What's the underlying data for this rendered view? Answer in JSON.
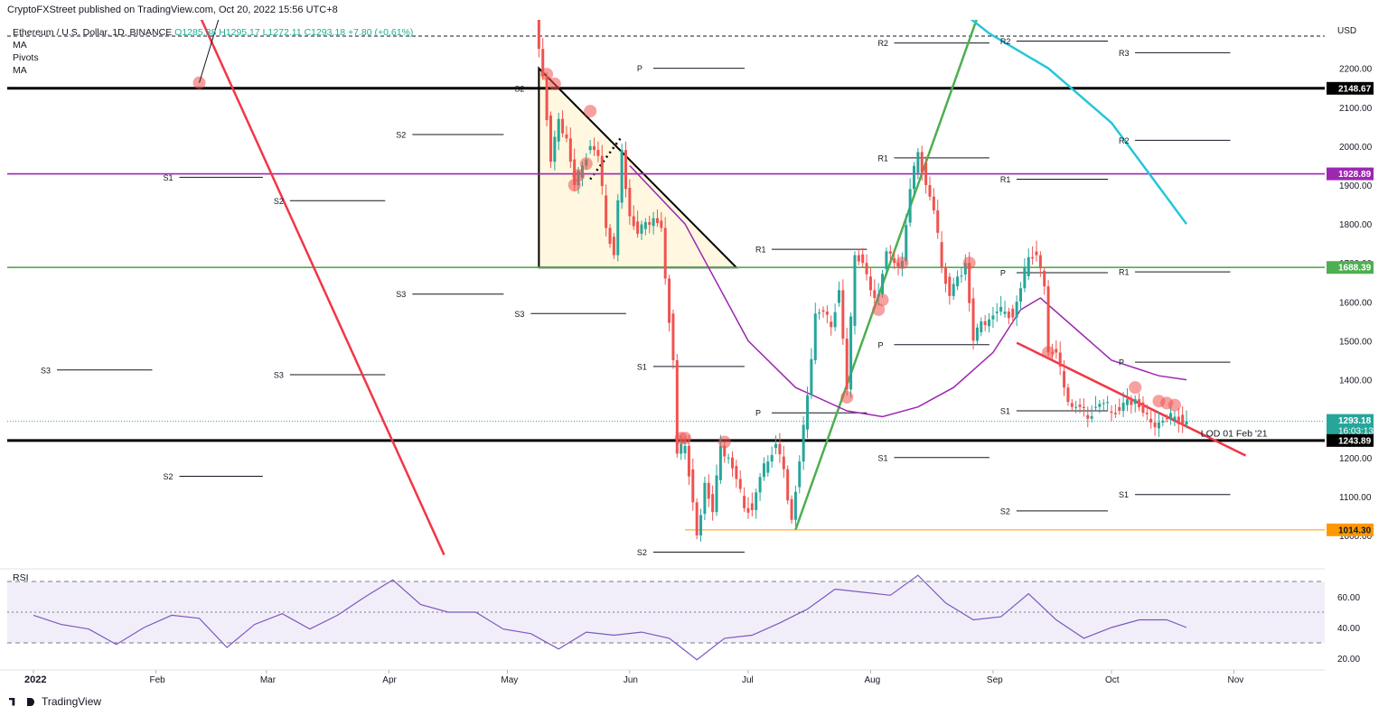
{
  "header": {
    "published": "CryptoFXStreet published on TradingView.com, Oct 20, 2022 15:56 UTC+8",
    "symbol": "Ethereum / U.S. Dollar, 1D, BINANCE",
    "ohlc": "O1285.38 H1295.17 L1272.11 C1293.18 +7.80 (+0.61%)",
    "indicators": [
      "MA",
      "Pivots",
      "MA"
    ]
  },
  "footer": {
    "brand": "TradingView"
  },
  "colors": {
    "up": "#26a69a",
    "down": "#ef5350",
    "ma_fast": "#9c27b0",
    "ma_slow": "#26c6da",
    "red_line": "#f23645",
    "green_line": "#4caf50",
    "triangle_fill": "#fff7df"
  },
  "chart_data": {
    "type": "line",
    "title": "",
    "price_axis": {
      "label": "USD",
      "min": 950,
      "max": 2300,
      "ticks": [
        1000,
        1100,
        1200,
        1300,
        1400,
        1500,
        1600,
        1700,
        1800,
        1900,
        2000,
        2100,
        2200
      ],
      "tick_labels": [
        "1000.00",
        "1100.00",
        "1200.00",
        "1300.00",
        "1400.00",
        "1500.00",
        "1600.00",
        "1700.00",
        "1800.00",
        "1900.00",
        "2000.00",
        "2100.00",
        "2200.00"
      ]
    },
    "time_axis": {
      "labels": [
        "2022",
        "Feb",
        "Mar",
        "Apr",
        "May",
        "Jun",
        "Jul",
        "Aug",
        "Sep",
        "Oct",
        "Nov"
      ],
      "label_days": [
        0,
        31,
        59,
        90,
        120,
        151,
        181,
        212,
        243,
        273,
        304
      ],
      "start": "2022-01-01"
    },
    "series": [
      {
        "kind": "close",
        "points": [
          [
            "2022-05-01",
            2850
          ],
          [
            "2022-05-06",
            2700
          ],
          [
            "2022-05-09",
            2250
          ],
          [
            "2022-05-10",
            2180
          ],
          [
            "2022-05-12",
            1960
          ],
          [
            "2022-05-14",
            2070
          ],
          [
            "2022-05-16",
            2020
          ],
          [
            "2022-05-18",
            1900
          ],
          [
            "2022-05-20",
            1950
          ],
          [
            "2022-05-22",
            2000
          ],
          [
            "2022-05-24",
            1975
          ],
          [
            "2022-05-26",
            1790
          ],
          [
            "2022-05-28",
            1720
          ],
          [
            "2022-05-30",
            1990
          ],
          [
            "2022-06-01",
            1820
          ],
          [
            "2022-06-03",
            1775
          ],
          [
            "2022-06-05",
            1805
          ],
          [
            "2022-06-07",
            1815
          ],
          [
            "2022-06-09",
            1790
          ],
          [
            "2022-06-10",
            1660
          ],
          [
            "2022-06-12",
            1450
          ],
          [
            "2022-06-13",
            1210
          ],
          [
            "2022-06-15",
            1230
          ],
          [
            "2022-06-17",
            1085
          ],
          [
            "2022-06-18",
            1000
          ],
          [
            "2022-06-20",
            1135
          ],
          [
            "2022-06-22",
            1060
          ],
          [
            "2022-06-24",
            1230
          ],
          [
            "2022-06-26",
            1200
          ],
          [
            "2022-06-28",
            1145
          ],
          [
            "2022-06-30",
            1070
          ],
          [
            "2022-07-02",
            1065
          ],
          [
            "2022-07-04",
            1150
          ],
          [
            "2022-07-06",
            1190
          ],
          [
            "2022-07-08",
            1235
          ],
          [
            "2022-07-10",
            1170
          ],
          [
            "2022-07-12",
            1040
          ],
          [
            "2022-07-14",
            1190
          ],
          [
            "2022-07-16",
            1360
          ],
          [
            "2022-07-18",
            1570
          ],
          [
            "2022-07-20",
            1575
          ],
          [
            "2022-07-22",
            1535
          ],
          [
            "2022-07-24",
            1630
          ],
          [
            "2022-07-26",
            1375
          ],
          [
            "2022-07-28",
            1720
          ],
          [
            "2022-07-30",
            1700
          ],
          [
            "2022-08-01",
            1630
          ],
          [
            "2022-08-03",
            1620
          ],
          [
            "2022-08-05",
            1730
          ],
          [
            "2022-08-07",
            1700
          ],
          [
            "2022-08-09",
            1705
          ],
          [
            "2022-08-11",
            1890
          ],
          [
            "2022-08-13",
            1985
          ],
          [
            "2022-08-15",
            1900
          ],
          [
            "2022-08-17",
            1835
          ],
          [
            "2022-08-19",
            1690
          ],
          [
            "2022-08-21",
            1615
          ],
          [
            "2022-08-23",
            1665
          ],
          [
            "2022-08-25",
            1700
          ],
          [
            "2022-08-27",
            1500
          ],
          [
            "2022-08-29",
            1550
          ],
          [
            "2022-08-31",
            1555
          ],
          [
            "2022-09-02",
            1575
          ],
          [
            "2022-09-04",
            1575
          ],
          [
            "2022-09-06",
            1560
          ],
          [
            "2022-09-08",
            1635
          ],
          [
            "2022-09-10",
            1715
          ],
          [
            "2022-09-12",
            1720
          ],
          [
            "2022-09-14",
            1640
          ],
          [
            "2022-09-15",
            1470
          ],
          [
            "2022-09-17",
            1470
          ],
          [
            "2022-09-19",
            1380
          ],
          [
            "2022-09-21",
            1330
          ],
          [
            "2022-09-23",
            1330
          ],
          [
            "2022-09-25",
            1300
          ],
          [
            "2022-09-27",
            1330
          ],
          [
            "2022-09-29",
            1340
          ],
          [
            "2022-10-01",
            1315
          ],
          [
            "2022-10-03",
            1320
          ],
          [
            "2022-10-05",
            1350
          ],
          [
            "2022-10-07",
            1350
          ],
          [
            "2022-10-09",
            1315
          ],
          [
            "2022-10-11",
            1290
          ],
          [
            "2022-10-13",
            1290
          ],
          [
            "2022-10-15",
            1300
          ],
          [
            "2022-10-17",
            1305
          ],
          [
            "2022-10-19",
            1285
          ],
          [
            "2022-10-20",
            1293.18
          ]
        ]
      },
      {
        "kind": "ma_fast",
        "points": [
          [
            "2022-06-01",
            1950
          ],
          [
            "2022-06-15",
            1800
          ],
          [
            "2022-07-01",
            1500
          ],
          [
            "2022-07-13",
            1380
          ],
          [
            "2022-07-26",
            1320
          ],
          [
            "2022-08-04",
            1305
          ],
          [
            "2022-08-13",
            1330
          ],
          [
            "2022-08-22",
            1380
          ],
          [
            "2022-09-01",
            1470
          ],
          [
            "2022-09-08",
            1580
          ],
          [
            "2022-09-13",
            1610
          ],
          [
            "2022-09-22",
            1530
          ],
          [
            "2022-10-01",
            1450
          ],
          [
            "2022-10-13",
            1410
          ],
          [
            "2022-10-20",
            1400
          ]
        ]
      },
      {
        "kind": "ma_slow",
        "points": [
          [
            "2022-08-06",
            2600
          ],
          [
            "2022-08-16",
            2410
          ],
          [
            "2022-08-31",
            2290
          ],
          [
            "2022-09-15",
            2200
          ],
          [
            "2022-10-01",
            2060
          ],
          [
            "2022-10-20",
            1800
          ]
        ]
      }
    ],
    "price_badges": [
      {
        "price": 2148.67,
        "label": "2148.67",
        "color": "#000000"
      },
      {
        "price": 1928.89,
        "label": "1928.89",
        "color": "#9c27b0"
      },
      {
        "price": 1688.39,
        "label": "1688.39",
        "color": "#4caf50"
      },
      {
        "price": 1293.18,
        "label": "1293.18",
        "sub": "16:03:13",
        "color": "#26a69a"
      },
      {
        "price": 1243.89,
        "label": "1243.89",
        "color": "#000000"
      },
      {
        "price": 1014.3,
        "label": "1014.30",
        "color": "#ff9800"
      }
    ],
    "horizontal_lines": [
      {
        "price": 2148.67,
        "color": "#000000",
        "width": 3
      },
      {
        "price": 1928.89,
        "color": "#9c27b0",
        "width": 1.6
      },
      {
        "price": 1688.39,
        "color": "#4caf50",
        "width": 1.6
      },
      {
        "price": 1243.89,
        "color": "#000000",
        "width": 3
      },
      {
        "price": 1014.3,
        "color": "#ff9800",
        "width": 1,
        "from": "2022-06-15"
      }
    ],
    "annotations": [
      {
        "text": "LOD 01 Feb '21",
        "price": 1254,
        "date": "2022-10-30"
      }
    ],
    "pivots": [
      {
        "label": "S1",
        "price": 1920,
        "from": "2022-02-01",
        "to": "2022-03-01"
      },
      {
        "label": "S2",
        "price": 1860,
        "from": "2022-03-01",
        "to": "2022-04-01"
      },
      {
        "label": "S2",
        "price": 2030,
        "from": "2022-04-01",
        "to": "2022-05-01"
      },
      {
        "label": "S2",
        "price": 1152,
        "from": "2022-02-01",
        "to": "2022-03-01"
      },
      {
        "label": "S3",
        "price": 1425,
        "from": "2022-01-01",
        "to": "2022-02-01"
      },
      {
        "label": "S3",
        "price": 1413,
        "from": "2022-03-01",
        "to": "2022-04-01"
      },
      {
        "label": "S3",
        "price": 1620,
        "from": "2022-04-01",
        "to": "2022-05-01"
      },
      {
        "label": "S2",
        "price": 2148.67,
        "from": "2022-05-01",
        "to": "2022-06-01"
      },
      {
        "label": "S3",
        "price": 1570,
        "from": "2022-05-01",
        "to": "2022-06-01"
      },
      {
        "label": "P",
        "price": 2200,
        "from": "2022-06-01",
        "to": "2022-07-01"
      },
      {
        "label": "S1",
        "price": 1434,
        "from": "2022-06-01",
        "to": "2022-07-01"
      },
      {
        "label": "S2",
        "price": 957,
        "from": "2022-06-01",
        "to": "2022-07-01"
      },
      {
        "label": "R1",
        "price": 1735,
        "from": "2022-07-01",
        "to": "2022-08-01"
      },
      {
        "label": "P",
        "price": 1315,
        "from": "2022-07-01",
        "to": "2022-08-01"
      },
      {
        "label": "R2",
        "price": 2265,
        "from": "2022-08-01",
        "to": "2022-09-01"
      },
      {
        "label": "R1",
        "price": 1970,
        "from": "2022-08-01",
        "to": "2022-09-01"
      },
      {
        "label": "P",
        "price": 1490,
        "from": "2022-08-01",
        "to": "2022-09-01"
      },
      {
        "label": "S1",
        "price": 1200,
        "from": "2022-08-01",
        "to": "2022-09-01"
      },
      {
        "label": "R2",
        "price": 2270,
        "from": "2022-09-01",
        "to": "2022-10-01"
      },
      {
        "label": "R1",
        "price": 1915,
        "from": "2022-09-01",
        "to": "2022-10-01"
      },
      {
        "label": "P",
        "price": 1675,
        "from": "2022-09-01",
        "to": "2022-10-01"
      },
      {
        "label": "S1",
        "price": 1320,
        "from": "2022-09-01",
        "to": "2022-10-01"
      },
      {
        "label": "S2",
        "price": 1063,
        "from": "2022-09-01",
        "to": "2022-10-01"
      },
      {
        "label": "R3",
        "price": 2240,
        "from": "2022-10-01",
        "to": "2022-11-01"
      },
      {
        "label": "R2",
        "price": 2015,
        "from": "2022-10-01",
        "to": "2022-11-01"
      },
      {
        "label": "R1",
        "price": 1677,
        "from": "2022-10-01",
        "to": "2022-11-01"
      },
      {
        "label": "P",
        "price": 1445,
        "from": "2022-10-01",
        "to": "2022-11-01"
      },
      {
        "label": "S1",
        "price": 1105,
        "from": "2022-10-01",
        "to": "2022-11-01"
      }
    ],
    "trendlines": [
      {
        "name": "red descending",
        "color": "#f23645",
        "from": [
          "2021-12-31",
          3300
        ],
        "to": [
          "2022-04-15",
          950
        ]
      },
      {
        "name": "green ascending",
        "color": "#4caf50",
        "from": [
          "2022-07-13",
          1015
        ],
        "to": [
          "2022-08-28",
          2330
        ]
      },
      {
        "name": "red descending short",
        "color": "#f23645",
        "from": [
          "2022-09-07",
          1495
        ],
        "to": [
          "2022-11-04",
          1205
        ]
      }
    ],
    "triangle": {
      "points": [
        [
          "2022-05-09",
          2200
        ],
        [
          "2022-05-09",
          1688.39
        ],
        [
          "2022-06-28",
          1688.39
        ]
      ]
    },
    "touch_markers": [
      [
        "2022-02-12",
        2163
      ],
      [
        "2022-05-11",
        2185
      ],
      [
        "2022-05-13",
        2160
      ],
      [
        "2022-05-18",
        1900
      ],
      [
        "2022-05-19",
        1925
      ],
      [
        "2022-05-21",
        1955
      ],
      [
        "2022-05-22",
        2090
      ],
      [
        "2022-06-14",
        1250
      ],
      [
        "2022-06-15",
        1250
      ],
      [
        "2022-06-25",
        1240
      ],
      [
        "2022-07-26",
        1355
      ],
      [
        "2022-08-03",
        1580
      ],
      [
        "2022-08-04",
        1605
      ],
      [
        "2022-08-09",
        1700
      ],
      [
        "2022-08-26",
        1700
      ],
      [
        "2022-09-15",
        1470
      ],
      [
        "2022-10-07",
        1380
      ],
      [
        "2022-10-13",
        1345
      ],
      [
        "2022-10-15",
        1340
      ],
      [
        "2022-10-17",
        1335
      ]
    ]
  },
  "rsi": {
    "label": "RSI",
    "levels": [
      70,
      50,
      30
    ],
    "ticks": [
      20,
      40,
      60
    ],
    "tick_labels": [
      "20.00",
      "40.00",
      "60.00"
    ],
    "points": [
      [
        "2022-01-01",
        48
      ],
      [
        "2022-01-08",
        42
      ],
      [
        "2022-01-15",
        36
      ],
      [
        "2022-01-22",
        30
      ],
      [
        "2022-01-29",
        38
      ],
      [
        "2022-02-05",
        50
      ],
      [
        "2022-02-12",
        45
      ],
      [
        "2022-02-19",
        30
      ],
      [
        "2022-02-26",
        42
      ],
      [
        "2022-03-05",
        46
      ],
      [
        "2022-03-12",
        40
      ],
      [
        "2022-03-19",
        46
      ],
      [
        "2022-03-26",
        62
      ],
      [
        "2022-04-02",
        70
      ],
      [
        "2022-04-09",
        58
      ],
      [
        "2022-04-16",
        50
      ],
      [
        "2022-04-23",
        47
      ],
      [
        "2022-04-30",
        40
      ],
      [
        "2022-05-07",
        34
      ],
      [
        "2022-05-14",
        28
      ],
      [
        "2022-05-21",
        36
      ],
      [
        "2022-05-28",
        38
      ],
      [
        "2022-06-04",
        37
      ],
      [
        "2022-06-11",
        30
      ],
      [
        "2022-06-18",
        20
      ],
      [
        "2022-06-25",
        31
      ],
      [
        "2022-07-02",
        37
      ],
      [
        "2022-07-09",
        42
      ],
      [
        "2022-07-16",
        55
      ],
      [
        "2022-07-23",
        65
      ],
      [
        "2022-07-30",
        60
      ],
      [
        "2022-08-06",
        62
      ],
      [
        "2022-08-13",
        72
      ],
      [
        "2022-08-20",
        58
      ],
      [
        "2022-08-27",
        44
      ],
      [
        "2022-09-03",
        50
      ],
      [
        "2022-09-10",
        62
      ],
      [
        "2022-09-17",
        42
      ],
      [
        "2022-09-24",
        34
      ],
      [
        "2022-10-01",
        38
      ],
      [
        "2022-10-08",
        47
      ],
      [
        "2022-10-15",
        44
      ],
      [
        "2022-10-20",
        43
      ]
    ]
  }
}
